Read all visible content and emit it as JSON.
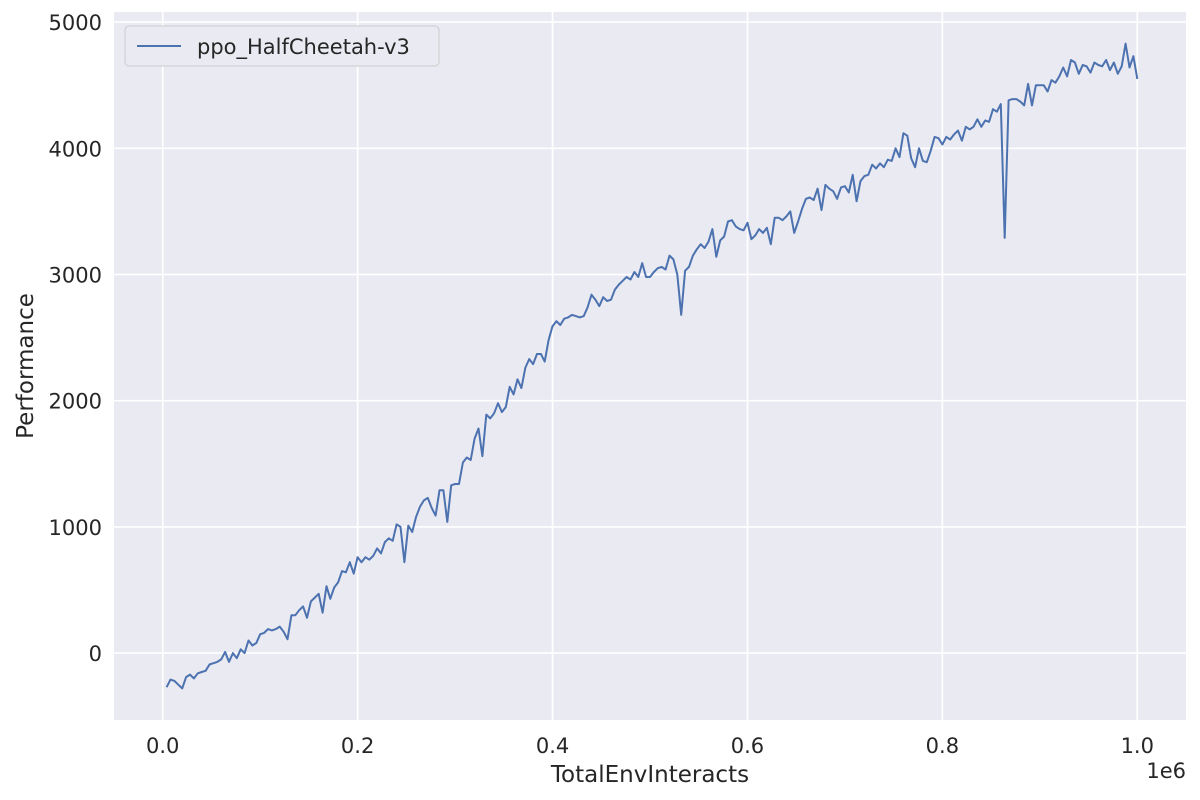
{
  "chart_data": {
    "type": "line",
    "xlabel": "TotalEnvInteracts",
    "ylabel": "Performance",
    "x_offset_label": "1e6",
    "x_scale": 1000000,
    "xlim": [
      -0.05,
      1.05
    ],
    "ylim": [
      -530,
      5080
    ],
    "x_ticks": [
      0.0,
      0.2,
      0.4,
      0.6,
      0.8,
      1.0
    ],
    "x_tick_labels": [
      "0.0",
      "0.2",
      "0.4",
      "0.6",
      "0.8",
      "1.0"
    ],
    "y_ticks": [
      0,
      1000,
      2000,
      3000,
      4000,
      5000
    ],
    "y_tick_labels": [
      "0",
      "1000",
      "2000",
      "3000",
      "4000",
      "5000"
    ],
    "grid": true,
    "legend_position": "top-left",
    "series": [
      {
        "name": "ppo_HalfCheetah-v3",
        "color": "#4c72b0",
        "x": [
          0.004,
          0.008,
          0.012,
          0.016,
          0.02,
          0.024,
          0.028,
          0.032,
          0.036,
          0.04,
          0.044,
          0.048,
          0.052,
          0.056,
          0.06,
          0.064,
          0.068,
          0.072,
          0.076,
          0.08,
          0.084,
          0.088,
          0.092,
          0.096,
          0.1,
          0.104,
          0.108,
          0.112,
          0.116,
          0.12,
          0.124,
          0.128,
          0.132,
          0.136,
          0.14,
          0.144,
          0.148,
          0.152,
          0.156,
          0.16,
          0.164,
          0.168,
          0.172,
          0.176,
          0.18,
          0.184,
          0.188,
          0.192,
          0.196,
          0.2,
          0.204,
          0.208,
          0.212,
          0.216,
          0.22,
          0.224,
          0.228,
          0.232,
          0.236,
          0.24,
          0.244,
          0.248,
          0.252,
          0.256,
          0.26,
          0.264,
          0.268,
          0.272,
          0.276,
          0.28,
          0.284,
          0.288,
          0.292,
          0.296,
          0.3,
          0.304,
          0.308,
          0.312,
          0.316,
          0.32,
          0.324,
          0.328,
          0.332,
          0.336,
          0.34,
          0.344,
          0.348,
          0.352,
          0.356,
          0.36,
          0.364,
          0.368,
          0.372,
          0.376,
          0.38,
          0.384,
          0.388,
          0.392,
          0.396,
          0.4,
          0.404,
          0.408,
          0.412,
          0.416,
          0.42,
          0.424,
          0.428,
          0.432,
          0.436,
          0.44,
          0.444,
          0.448,
          0.452,
          0.456,
          0.46,
          0.464,
          0.468,
          0.472,
          0.476,
          0.48,
          0.484,
          0.488,
          0.492,
          0.496,
          0.5,
          0.504,
          0.508,
          0.512,
          0.516,
          0.52,
          0.524,
          0.528,
          0.532,
          0.536,
          0.54,
          0.544,
          0.548,
          0.552,
          0.556,
          0.56,
          0.564,
          0.568,
          0.572,
          0.576,
          0.58,
          0.584,
          0.588,
          0.592,
          0.596,
          0.6,
          0.604,
          0.608,
          0.612,
          0.616,
          0.62,
          0.624,
          0.628,
          0.632,
          0.636,
          0.64,
          0.644,
          0.648,
          0.652,
          0.656,
          0.66,
          0.664,
          0.668,
          0.672,
          0.676,
          0.68,
          0.684,
          0.688,
          0.692,
          0.696,
          0.7,
          0.704,
          0.708,
          0.712,
          0.716,
          0.72,
          0.724,
          0.728,
          0.732,
          0.736,
          0.74,
          0.744,
          0.748,
          0.752,
          0.756,
          0.76,
          0.764,
          0.768,
          0.772,
          0.776,
          0.78,
          0.784,
          0.788,
          0.792,
          0.796,
          0.8,
          0.804,
          0.808,
          0.812,
          0.816,
          0.82,
          0.824,
          0.828,
          0.832,
          0.836,
          0.84,
          0.844,
          0.848,
          0.852,
          0.856,
          0.86,
          0.864,
          0.868,
          0.872,
          0.876,
          0.88,
          0.884,
          0.888,
          0.892,
          0.896,
          0.9,
          0.904,
          0.908,
          0.912,
          0.916,
          0.92,
          0.924,
          0.928,
          0.932,
          0.936,
          0.94,
          0.944,
          0.948,
          0.952,
          0.956,
          0.96,
          0.964,
          0.968,
          0.972,
          0.976,
          0.98,
          0.984,
          0.988,
          0.992,
          0.996,
          1.0
        ],
        "y": [
          -270,
          -210,
          -220,
          -250,
          -280,
          -190,
          -170,
          -200,
          -160,
          -150,
          -140,
          -90,
          -80,
          -70,
          -50,
          10,
          -70,
          0,
          -40,
          30,
          0,
          100,
          60,
          80,
          150,
          160,
          190,
          180,
          190,
          210,
          170,
          110,
          300,
          300,
          340,
          370,
          280,
          410,
          440,
          470,
          320,
          530,
          430,
          520,
          560,
          650,
          640,
          720,
          630,
          760,
          720,
          760,
          740,
          770,
          830,
          790,
          880,
          910,
          890,
          1020,
          1000,
          720,
          1010,
          960,
          1080,
          1160,
          1210,
          1230,
          1150,
          1090,
          1290,
          1290,
          1040,
          1330,
          1340,
          1340,
          1510,
          1550,
          1530,
          1700,
          1780,
          1560,
          1890,
          1860,
          1900,
          1980,
          1910,
          1950,
          2110,
          2050,
          2170,
          2100,
          2260,
          2330,
          2290,
          2370,
          2370,
          2310,
          2480,
          2590,
          2630,
          2600,
          2650,
          2660,
          2680,
          2670,
          2660,
          2670,
          2740,
          2840,
          2800,
          2750,
          2820,
          2790,
          2800,
          2880,
          2920,
          2950,
          2980,
          2960,
          3020,
          2980,
          3090,
          2980,
          2980,
          3020,
          3050,
          3060,
          3040,
          3150,
          3120,
          3000,
          2680,
          3030,
          3060,
          3150,
          3200,
          3240,
          3210,
          3260,
          3360,
          3140,
          3270,
          3300,
          3420,
          3430,
          3380,
          3360,
          3350,
          3410,
          3280,
          3310,
          3360,
          3330,
          3370,
          3240,
          3450,
          3450,
          3430,
          3460,
          3500,
          3330,
          3420,
          3520,
          3600,
          3610,
          3590,
          3680,
          3510,
          3710,
          3680,
          3660,
          3600,
          3690,
          3700,
          3650,
          3790,
          3580,
          3740,
          3780,
          3790,
          3870,
          3840,
          3880,
          3850,
          3910,
          3900,
          4000,
          3930,
          4120,
          4100,
          3920,
          3850,
          4000,
          3900,
          3890,
          3980,
          4090,
          4080,
          4030,
          4090,
          4070,
          4110,
          4140,
          4060,
          4170,
          4150,
          4170,
          4230,
          4170,
          4220,
          4210,
          4310,
          4290,
          4350,
          3290,
          4380,
          4390,
          4390,
          4370,
          4340,
          4510,
          4340,
          4500,
          4500,
          4500,
          4450,
          4540,
          4520,
          4570,
          4640,
          4570,
          4700,
          4680,
          4590,
          4660,
          4650,
          4600,
          4680,
          4660,
          4650,
          4700,
          4620,
          4680,
          4590,
          4650,
          4830,
          4640,
          4730,
          4550
        ]
      }
    ]
  }
}
